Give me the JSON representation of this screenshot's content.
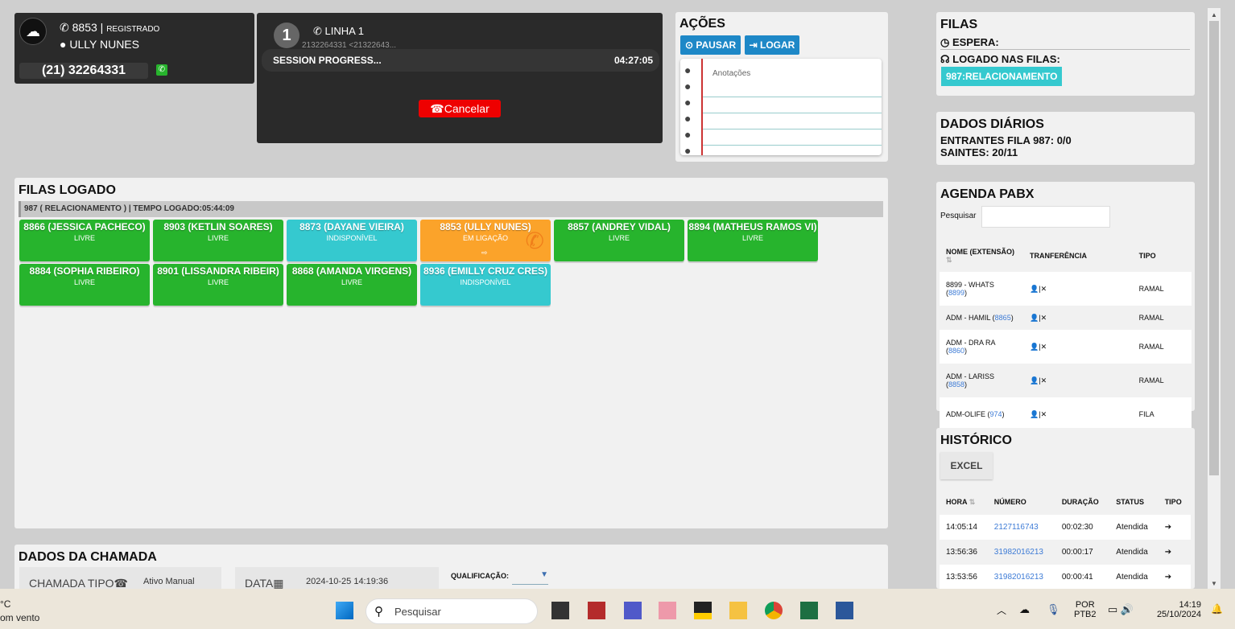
{
  "agent": {
    "extension": "8853",
    "status": "REGISTRADO",
    "name": "ULLY NUNES",
    "phone": "(21) 32264331"
  },
  "line": {
    "number": "1",
    "label": "LINHA 1",
    "caller": "2132264331 <21322643...",
    "state": "SESSION PROGRESS...",
    "timer": "04:27:05",
    "cancel_label": "Cancelar"
  },
  "actions": {
    "title": "AÇÕES",
    "pause_label": "PAUSAR",
    "login_label": "LOGAR",
    "notes_placeholder": "Anotações"
  },
  "queues": {
    "title": "FILAS",
    "wait_label": "ESPERA:",
    "logged_label": "LOGADO NAS FILAS:",
    "badge": "987:RELACIONAMENTO"
  },
  "daily": {
    "title": "DADOS DIÁRIOS",
    "incoming": "ENTRANTES FILA 987: 0/0",
    "outgoing": "SAINTES: 20/11"
  },
  "filas_logado": {
    "title": "FILAS LOGADO",
    "info": "987 ( RELACIONAMENTO ) | TEMPO LOGADO:05:44:09",
    "agents": [
      {
        "name": "8866 (JESSICA PACHECO)",
        "status": "LIVRE",
        "color": "green"
      },
      {
        "name": "8903 (KETLIN SOARES)",
        "status": "LIVRE",
        "color": "green"
      },
      {
        "name": "8873 (DAYANE VIEIRA)",
        "status": "INDISPONÍVEL",
        "color": "cyan"
      },
      {
        "name": "8853 (ULLY NUNES)",
        "status": "EM LIGAÇÃO",
        "color": "orange"
      },
      {
        "name": "8857 (ANDREY VIDAL)",
        "status": "LIVRE",
        "color": "green"
      },
      {
        "name": "8894 (MATHEUS RAMOS VI)",
        "status": "LIVRE",
        "color": "green"
      },
      {
        "name": "8884 (SOPHIA RIBEIRO)",
        "status": "LIVRE",
        "color": "green"
      },
      {
        "name": "8901 (LISSANDRA RIBEIR)",
        "status": "LIVRE",
        "color": "green"
      },
      {
        "name": "8868 (AMANDA VIRGENS)",
        "status": "LIVRE",
        "color": "green"
      },
      {
        "name": "8936 (EMILLY CRUZ CRES)",
        "status": "INDISPONÍVEL",
        "color": "cyan"
      }
    ]
  },
  "agenda": {
    "title": "AGENDA PABX",
    "search_label": "Pesquisar",
    "search_value": "",
    "headers": [
      "NOME (EXTENSÃO)",
      "TRANFERÊNCIA",
      "TIPO"
    ],
    "rows": [
      {
        "name": "8899 - WHATS",
        "ext": "8899",
        "type": "RAMAL"
      },
      {
        "name": "ADM - HAMIL",
        "ext": "8865",
        "type": "RAMAL"
      },
      {
        "name": "ADM - DRA RA",
        "ext": "8860",
        "type": "RAMAL"
      },
      {
        "name": "ADM - LARISS",
        "ext": "8858",
        "type": "RAMAL"
      },
      {
        "name": "ADM-OLIFE",
        "ext": "974",
        "type": "FILA"
      }
    ]
  },
  "historico": {
    "title": "HISTÓRICO",
    "excel_label": "EXCEL",
    "headers": [
      "HORA",
      "NÚMERO",
      "DURAÇÃO",
      "STATUS",
      "TIPO"
    ],
    "rows": [
      {
        "hora": "14:05:14",
        "numero": "2127116743",
        "duracao": "00:02:30",
        "status": "Atendida"
      },
      {
        "hora": "13:56:36",
        "numero": "31982016213",
        "duracao": "00:00:17",
        "status": "Atendida"
      },
      {
        "hora": "13:53:56",
        "numero": "31982016213",
        "duracao": "00:00:41",
        "status": "Atendida"
      }
    ]
  },
  "call_data": {
    "title": "DADOS DA CHAMADA",
    "type_label": "CHAMADA TIPO",
    "type_value": "Ativo Manual",
    "date_label": "DATA",
    "date_value": "2024-10-25 14:19:36",
    "qual_label": "QUALIFICAÇÃO:"
  },
  "taskbar": {
    "weather_temp": "°C",
    "weather_desc": "om vento",
    "search_placeholder": "Pesquisar",
    "lang": "POR",
    "layout": "PTB2",
    "time": "14:19",
    "date": "25/10/2024"
  }
}
